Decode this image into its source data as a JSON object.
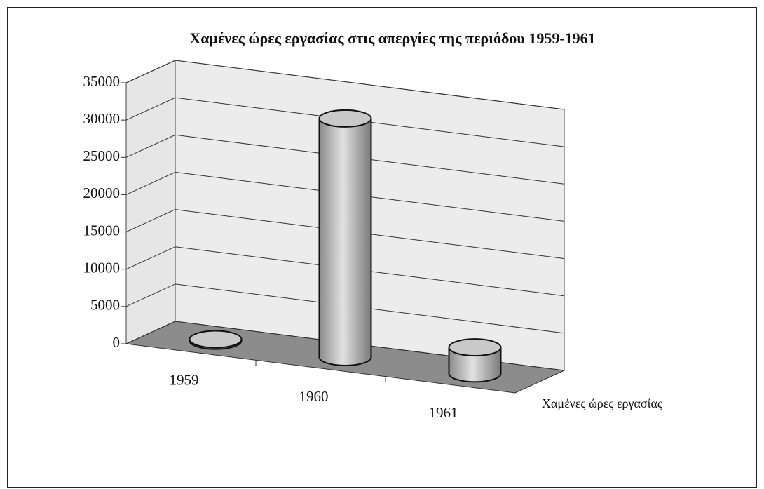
{
  "chart_data": {
    "type": "cylinder3d",
    "title": "Χαμένες ώρες εργασίας στις απεργίες της περιόδου 1959-1961",
    "categories": [
      "1959",
      "1960",
      "1961"
    ],
    "series": [
      {
        "name": "Χαμένες ώρες εργασίας",
        "color": "#b8b8b8",
        "values": [
          200,
          32000,
          3500
        ]
      }
    ],
    "ylim": [
      0,
      35000
    ],
    "yticks": [
      0,
      5000,
      10000,
      15000,
      20000,
      25000,
      30000,
      35000
    ],
    "grid": true
  }
}
